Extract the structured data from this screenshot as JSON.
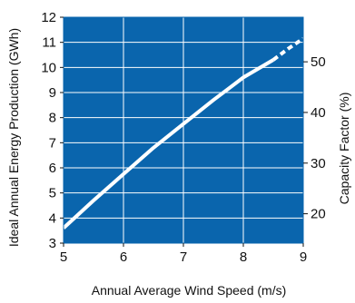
{
  "chart_data": {
    "type": "line",
    "xlabel": "Annual Average Wind Speed (m/s)",
    "ylabel": "Ideal Annual Energy Production (GWh)",
    "y2label": "Capacity Factor (%)",
    "xlim": [
      5,
      9
    ],
    "ylim": [
      3,
      12
    ],
    "y2lim": [
      14.2,
      58.8
    ],
    "x_ticks": [
      "5",
      "6",
      "7",
      "8",
      "9"
    ],
    "y_ticks": [
      "3",
      "4",
      "5",
      "6",
      "7",
      "8",
      "9",
      "10",
      "11",
      "12"
    ],
    "y2_ticks": [
      "20",
      "30",
      "40",
      "50"
    ],
    "grid": true,
    "colors": {
      "plot_background": "#0a65ad",
      "grid": "#ffffff",
      "line": "#ffffff"
    },
    "series": [
      {
        "style": "solid",
        "x": [
          5.0,
          5.5,
          6.0,
          6.5,
          7.0,
          7.5,
          8.0,
          8.5
        ],
        "y": [
          3.6,
          4.7,
          5.75,
          6.8,
          7.75,
          8.7,
          9.6,
          10.3
        ]
      },
      {
        "style": "dashed",
        "x": [
          8.5,
          8.75,
          9.0
        ],
        "y": [
          10.3,
          10.75,
          11.15
        ]
      }
    ]
  }
}
